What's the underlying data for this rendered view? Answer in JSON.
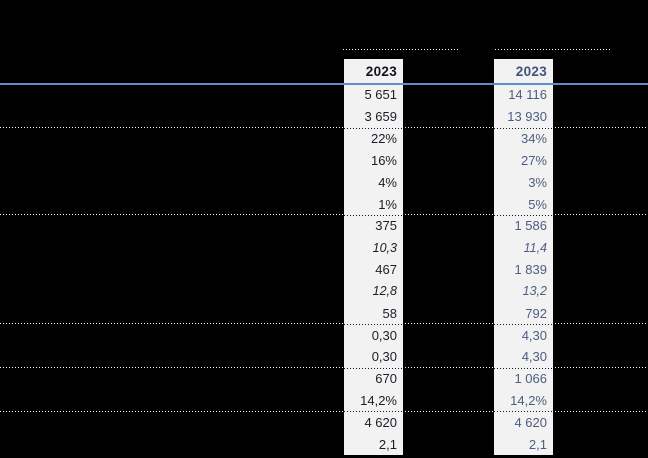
{
  "columns": [
    {
      "header": "2023",
      "values": [
        "5 651",
        "3 659",
        "22%",
        "16%",
        "4%",
        "1%",
        "375",
        "10,3",
        "467",
        "12,8",
        "58",
        "0,30",
        "0,30",
        "670",
        "14,2%",
        "4 620",
        "2,1"
      ]
    },
    {
      "header": "2023",
      "values": [
        "14 116",
        "13 930",
        "34%",
        "27%",
        "3%",
        "5%",
        "1 586",
        "11,4",
        "1 839",
        "13,2",
        "792",
        "4,30",
        "4,30",
        "1 066",
        "14,2%",
        "4 620",
        "2,1"
      ]
    }
  ],
  "row_semantics": {
    "italic_rows": [
      7,
      9
    ],
    "section_break_above_rows": [
      2,
      6,
      11,
      13,
      15
    ]
  },
  "colors": {
    "page_background": "#000000",
    "strip_background": "#f2f2f2",
    "column1_text": "#1d1d27",
    "column2_text": "#4c5e80",
    "header_rule_blue": "#5f8fca",
    "dotted_rule_on_black": "#ffffff",
    "dotted_rule_on_strip": "#15151c"
  }
}
